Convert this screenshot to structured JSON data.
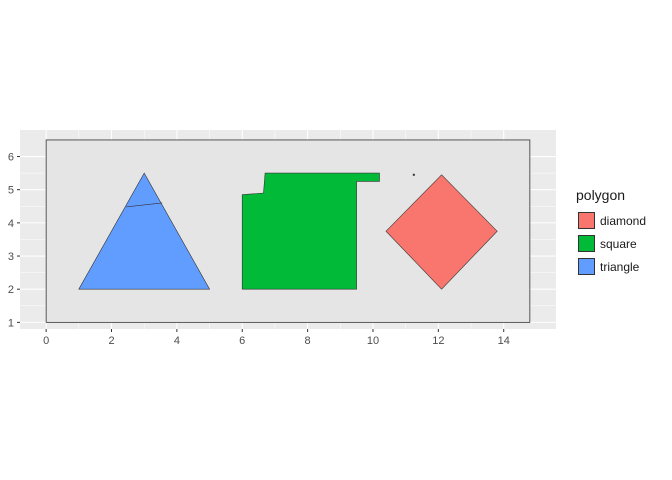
{
  "chart_data": {
    "type": "polygon",
    "title": "",
    "xlabel": "",
    "ylabel": "",
    "xlim": [
      -0.8,
      15.6
    ],
    "ylim": [
      0.8,
      6.8
    ],
    "x_ticks": [
      0,
      2,
      4,
      6,
      8,
      10,
      12,
      14
    ],
    "y_ticks": [
      1,
      2,
      3,
      4,
      5,
      6
    ],
    "grid": true,
    "legend": {
      "title": "polygon",
      "placement": "right"
    },
    "background_rect": {
      "x": [
        0,
        14.8
      ],
      "y": [
        1,
        6.5
      ],
      "fill": "#e5e5e5"
    },
    "series": [
      {
        "name": "diamond",
        "color": "#F8766D",
        "points": [
          [
            12.1,
            5.45
          ],
          [
            13.8,
            3.75
          ],
          [
            12.1,
            2.0
          ],
          [
            10.4,
            3.75
          ]
        ]
      },
      {
        "name": "square",
        "color": "#00BA38",
        "points": [
          [
            6.0,
            2.0
          ],
          [
            6.0,
            4.85
          ],
          [
            6.65,
            4.9
          ],
          [
            6.7,
            5.5
          ],
          [
            10.2,
            5.5
          ],
          [
            10.2,
            5.25
          ],
          [
            9.5,
            5.25
          ],
          [
            9.5,
            2.0
          ]
        ]
      },
      {
        "name": "triangle",
        "color": "#619CFF",
        "points": [
          [
            1.0,
            2.0
          ],
          [
            3.0,
            5.5
          ],
          [
            5.0,
            2.0
          ]
        ],
        "inner_line": [
          [
            2.45,
            4.48
          ],
          [
            3.55,
            4.6
          ]
        ]
      }
    ],
    "markers": [
      {
        "x": 11.25,
        "y": 5.45
      }
    ]
  }
}
